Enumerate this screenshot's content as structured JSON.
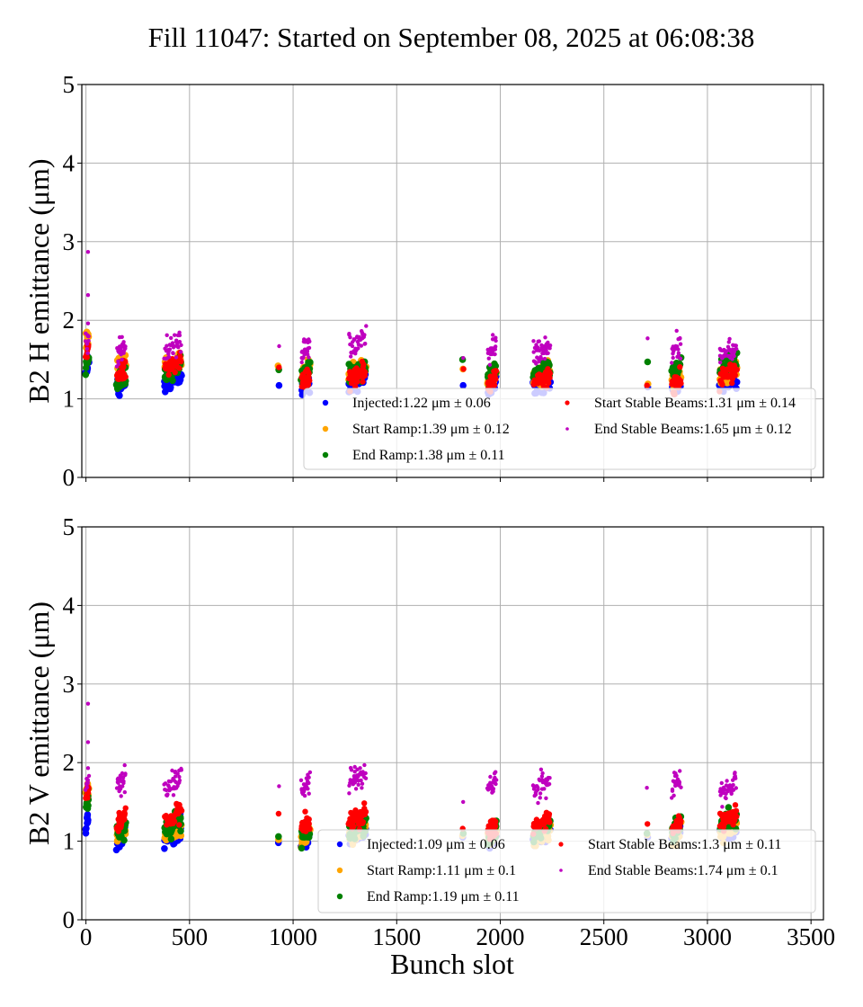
{
  "chart_data": {
    "type": "scatter",
    "title": "Fill 11047: Started on September 08, 2025 at 06:08:38",
    "xlabel": "Bunch slot",
    "xlim": [
      -20,
      3560
    ],
    "xticks": [
      0,
      500,
      1000,
      1500,
      2000,
      2500,
      3000,
      3500
    ],
    "ylim": [
      0,
      5
    ],
    "yticks": [
      0,
      1,
      2,
      3,
      4,
      5
    ],
    "grid": true,
    "series_styles": [
      {
        "name": "Injected",
        "color": "#0000ff"
      },
      {
        "name": "Start Ramp",
        "color": "#ffa500"
      },
      {
        "name": "End Ramp",
        "color": "#008000"
      },
      {
        "name": "Start Stable Beams",
        "color": "#ff0000"
      },
      {
        "name": "End Stable Beams",
        "color": "#bf00bf"
      }
    ],
    "panels": [
      {
        "ylabel": "B2 H emittance (μm)",
        "legend_position": "lower-right",
        "legend": [
          {
            "name": "Injected",
            "text": "Injected:1.22 μm ± 0.06"
          },
          {
            "name": "Start Ramp",
            "text": "Start Ramp:1.39 μm ± 0.12"
          },
          {
            "name": "End Ramp",
            "text": "End Ramp:1.38 μm ± 0.11"
          },
          {
            "name": "Start Stable Beams",
            "text": "Start Stable Beams:1.31 μm ± 0.14"
          },
          {
            "name": "End Stable Beams",
            "text": "End Stable Beams:1.65 μm ± 0.12"
          }
        ],
        "clusters": [
          {
            "x": [
              0,
              12
            ],
            "n": 10,
            "means": [
              1.45,
              1.8,
              1.45,
              1.6,
              1.7
            ]
          },
          {
            "x": [
              150,
              190
            ],
            "n": 24,
            "means": [
              1.18,
              1.45,
              1.25,
              1.35,
              1.62
            ]
          },
          {
            "x": [
              380,
              460
            ],
            "n": 36,
            "means": [
              1.25,
              1.45,
              1.4,
              1.45,
              1.68
            ]
          },
          {
            "x": [
              930,
              930
            ],
            "n": 1,
            "means": [
              1.17,
              1.42,
              1.37,
              1.4,
              1.67
            ]
          },
          {
            "x": [
              1040,
              1080
            ],
            "n": 24,
            "means": [
              1.2,
              1.35,
              1.35,
              1.25,
              1.6
            ]
          },
          {
            "x": [
              1270,
              1350
            ],
            "n": 36,
            "means": [
              1.22,
              1.38,
              1.35,
              1.3,
              1.72
            ]
          },
          {
            "x": [
              1820,
              1820
            ],
            "n": 1,
            "means": [
              1.17,
              1.38,
              1.5,
              1.38,
              1.52
            ]
          },
          {
            "x": [
              1940,
              1980
            ],
            "n": 24,
            "means": [
              1.18,
              1.3,
              1.35,
              1.2,
              1.65
            ]
          },
          {
            "x": [
              2160,
              2240
            ],
            "n": 36,
            "means": [
              1.18,
              1.3,
              1.35,
              1.25,
              1.65
            ]
          },
          {
            "x": [
              2710,
              2710
            ],
            "n": 1,
            "means": [
              1.15,
              1.19,
              1.47,
              1.17,
              1.77
            ]
          },
          {
            "x": [
              2830,
              2870
            ],
            "n": 24,
            "means": [
              1.2,
              1.3,
              1.4,
              1.2,
              1.65
            ]
          },
          {
            "x": [
              3060,
              3140
            ],
            "n": 36,
            "means": [
              1.22,
              1.35,
              1.45,
              1.3,
              1.6
            ]
          }
        ],
        "outliers": [
          {
            "x": 10,
            "y": 2.87
          },
          {
            "x": 10,
            "y": 2.32
          },
          {
            "x": 10,
            "y": 1.96
          }
        ]
      },
      {
        "ylabel": "B2 V emittance (μm)",
        "legend_position": "lower-right",
        "legend": [
          {
            "name": "Injected",
            "text": "Injected:1.09 μm ± 0.06"
          },
          {
            "name": "Start Ramp",
            "text": "Start Ramp:1.11 μm ± 0.1"
          },
          {
            "name": "End Ramp",
            "text": "End Ramp:1.19 μm ± 0.11"
          },
          {
            "name": "Start Stable Beams",
            "text": "Start Stable Beams:1.3 μm ± 0.11"
          },
          {
            "name": "End Stable Beams",
            "text": "End Stable Beams:1.74 μm ± 0.1"
          }
        ],
        "clusters": [
          {
            "x": [
              0,
              12
            ],
            "n": 10,
            "means": [
              1.22,
              1.6,
              1.5,
              1.6,
              1.75
            ]
          },
          {
            "x": [
              150,
              190
            ],
            "n": 24,
            "means": [
              1.05,
              1.1,
              1.12,
              1.25,
              1.75
            ]
          },
          {
            "x": [
              380,
              460
            ],
            "n": 36,
            "means": [
              1.1,
              1.12,
              1.2,
              1.3,
              1.75
            ]
          },
          {
            "x": [
              930,
              930
            ],
            "n": 1,
            "means": [
              0.98,
              1.02,
              1.06,
              1.35,
              1.7
            ]
          },
          {
            "x": [
              1040,
              1080
            ],
            "n": 24,
            "means": [
              1.05,
              1.08,
              1.1,
              1.2,
              1.72
            ]
          },
          {
            "x": [
              1270,
              1350
            ],
            "n": 36,
            "means": [
              1.1,
              1.12,
              1.15,
              1.3,
              1.8
            ]
          },
          {
            "x": [
              1820,
              1820
            ],
            "n": 1,
            "means": [
              1.05,
              1.07,
              1.1,
              1.16,
              1.5
            ]
          },
          {
            "x": [
              1940,
              1980
            ],
            "n": 24,
            "means": [
              1.05,
              1.08,
              1.1,
              1.18,
              1.75
            ]
          },
          {
            "x": [
              2160,
              2240
            ],
            "n": 36,
            "means": [
              1.08,
              1.1,
              1.15,
              1.25,
              1.72
            ]
          },
          {
            "x": [
              2710,
              2710
            ],
            "n": 1,
            "means": [
              1.05,
              1.08,
              1.1,
              1.22,
              1.68
            ]
          },
          {
            "x": [
              2830,
              2870
            ],
            "n": 24,
            "means": [
              1.1,
              1.12,
              1.18,
              1.2,
              1.75
            ]
          },
          {
            "x": [
              3060,
              3140
            ],
            "n": 36,
            "means": [
              1.12,
              1.15,
              1.25,
              1.3,
              1.7
            ]
          }
        ],
        "outliers": [
          {
            "x": 10,
            "y": 2.75
          },
          {
            "x": 10,
            "y": 2.26
          },
          {
            "x": 10,
            "y": 1.93
          }
        ]
      }
    ]
  }
}
